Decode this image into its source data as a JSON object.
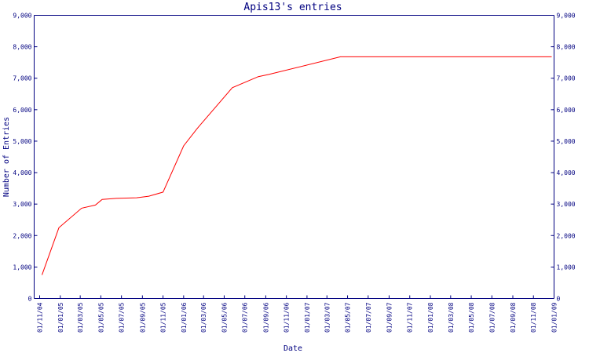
{
  "chart_data": {
    "type": "line",
    "title": "Apis13's entries",
    "xlabel": "Date",
    "ylabel": "Number of Entries",
    "ylim": [
      0,
      9000
    ],
    "y_ticks": [
      "0",
      "1,000",
      "2,000",
      "3,000",
      "4,000",
      "5,000",
      "6,000",
      "7,000",
      "8,000",
      "9,000"
    ],
    "x_ticks": [
      "01/11/04",
      "01/01/05",
      "01/03/05",
      "01/05/05",
      "01/07/05",
      "01/09/05",
      "01/11/05",
      "01/01/06",
      "01/03/06",
      "01/05/06",
      "01/07/06",
      "01/09/06",
      "01/11/06",
      "01/01/07",
      "01/03/07",
      "01/05/07",
      "01/07/07",
      "01/09/07",
      "01/11/07",
      "01/01/08",
      "01/03/08",
      "01/05/08",
      "01/07/08",
      "01/09/08",
      "01/11/08",
      "01/01/09"
    ],
    "grid": false,
    "line_color": "#ff0000",
    "axis_color": "#000080",
    "series": [
      {
        "x": [
          "2004-11-08",
          "2004-12-28",
          "2005-03-05",
          "2005-04-15",
          "2005-05-05",
          "2005-06-15",
          "2005-08-15",
          "2005-09-20",
          "2005-11-01",
          "2006-01-01",
          "2006-02-10",
          "2006-04-15",
          "2006-05-25",
          "2006-08-10",
          "2006-09-10",
          "2007-04-10",
          "2008-12-25"
        ],
        "y": [
          750,
          2250,
          2870,
          2970,
          3150,
          3180,
          3200,
          3250,
          3380,
          4850,
          5400,
          6200,
          6700,
          7050,
          7120,
          7680,
          7680
        ]
      }
    ]
  }
}
